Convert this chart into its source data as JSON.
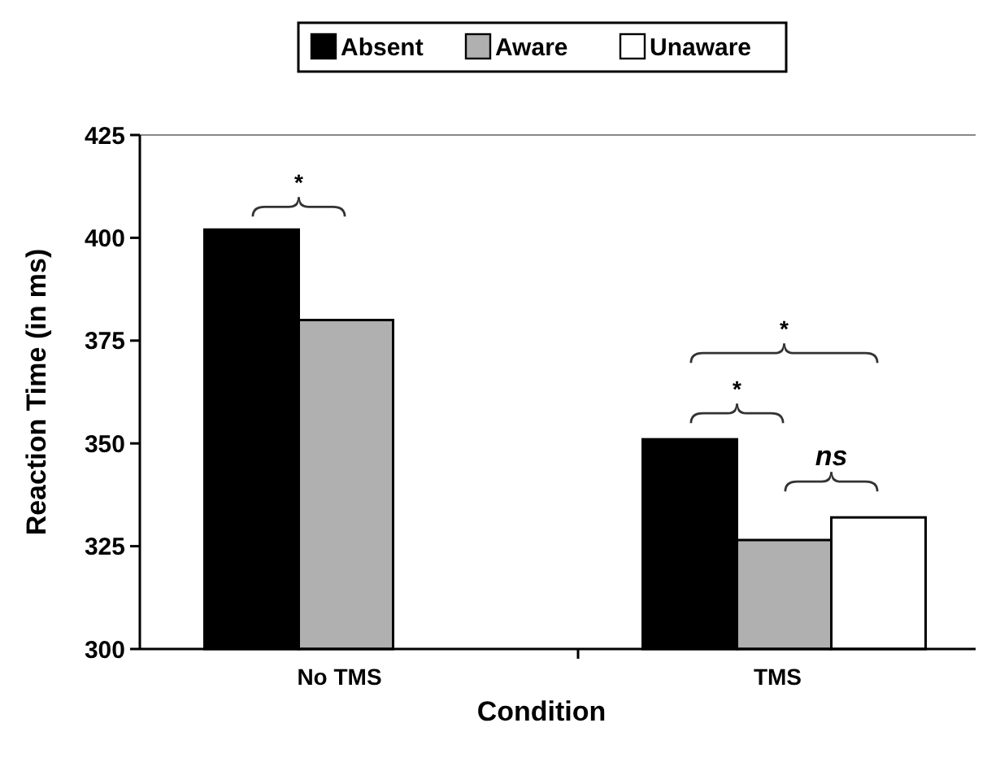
{
  "chart_data": {
    "type": "bar",
    "xlabel": "Condition",
    "ylabel": "Reaction Time (in ms)",
    "categories": [
      "No TMS",
      "TMS"
    ],
    "series": [
      {
        "name": "Absent",
        "color": "#000000",
        "values": [
          402,
          351
        ]
      },
      {
        "name": "Aware",
        "color": "#b0b0b0",
        "values": [
          380,
          326.5
        ]
      },
      {
        "name": "Unaware",
        "color": "#ffffff",
        "values": [
          null,
          332
        ]
      }
    ],
    "ylim": [
      300,
      425
    ],
    "yticks": [
      300,
      325,
      350,
      375,
      400,
      425
    ],
    "legend": "top",
    "grid": false,
    "annotations": [
      "*",
      "*",
      "*",
      "ns"
    ]
  }
}
